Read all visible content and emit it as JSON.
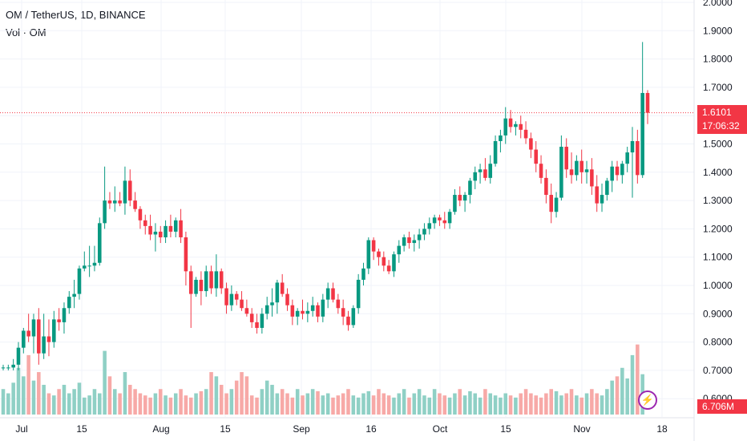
{
  "header": {
    "title": "OM / TetherUS, 1D, BINANCE",
    "volume_label": "Vol · OM"
  },
  "price_tag": {
    "price": "1.6101",
    "countdown": "17:06:32",
    "color": "#f23645"
  },
  "volume_tag": {
    "value": "6.706M",
    "color": "#f23645"
  },
  "colors": {
    "up": "#089981",
    "down": "#f23645",
    "up_volume": "#8fd0c5",
    "down_volume": "#f7a9a7",
    "grid": "#f0f3fa"
  },
  "icons": {
    "flash": "lightning-icon"
  },
  "chart_data": {
    "type": "candlestick",
    "y_axis": {
      "labels": [
        "2.0000",
        "1.9000",
        "1.8000",
        "1.7000",
        "1.6000",
        "1.5000",
        "1.4000",
        "1.3000",
        "1.2000",
        "1.1000",
        "1.0000",
        "0.9000",
        "0.8000",
        "0.7000",
        "0.6000"
      ],
      "range": [
        0.6,
        2.0
      ]
    },
    "x_axis": {
      "labels": [
        "Jul",
        "15",
        "Aug",
        "15",
        "Sep",
        "16",
        "Oct",
        "15",
        "Nov",
        "18"
      ]
    },
    "ohlc": [
      [
        0.71,
        0.72,
        0.7,
        0.71
      ],
      [
        0.71,
        0.72,
        0.7,
        0.71
      ],
      [
        0.71,
        0.74,
        0.7,
        0.72
      ],
      [
        0.72,
        0.8,
        0.7,
        0.78
      ],
      [
        0.78,
        0.85,
        0.76,
        0.84
      ],
      [
        0.84,
        0.9,
        0.8,
        0.82
      ],
      [
        0.82,
        0.9,
        0.76,
        0.88
      ],
      [
        0.88,
        0.92,
        0.72,
        0.76
      ],
      [
        0.76,
        0.9,
        0.74,
        0.82
      ],
      [
        0.82,
        0.88,
        0.75,
        0.8
      ],
      [
        0.8,
        0.91,
        0.78,
        0.88
      ],
      [
        0.88,
        0.92,
        0.84,
        0.87
      ],
      [
        0.87,
        0.94,
        0.83,
        0.92
      ],
      [
        0.92,
        0.98,
        0.9,
        0.96
      ],
      [
        0.96,
        1.02,
        0.92,
        0.97
      ],
      [
        0.97,
        1.07,
        0.95,
        1.06
      ],
      [
        1.06,
        1.12,
        1.05,
        1.07
      ],
      [
        1.07,
        1.14,
        1.03,
        1.07
      ],
      [
        1.07,
        1.14,
        1.05,
        1.08
      ],
      [
        1.08,
        1.24,
        1.07,
        1.22
      ],
      [
        1.22,
        1.42,
        1.2,
        1.3
      ],
      [
        1.3,
        1.33,
        1.27,
        1.29
      ],
      [
        1.29,
        1.35,
        1.26,
        1.3
      ],
      [
        1.3,
        1.33,
        1.28,
        1.29
      ],
      [
        1.29,
        1.42,
        1.25,
        1.37
      ],
      [
        1.37,
        1.41,
        1.28,
        1.3
      ],
      [
        1.3,
        1.33,
        1.26,
        1.27
      ],
      [
        1.27,
        1.28,
        1.2,
        1.23
      ],
      [
        1.23,
        1.25,
        1.18,
        1.21
      ],
      [
        1.21,
        1.25,
        1.16,
        1.18
      ],
      [
        1.18,
        1.22,
        1.12,
        1.19
      ],
      [
        1.19,
        1.21,
        1.15,
        1.17
      ],
      [
        1.17,
        1.23,
        1.15,
        1.21
      ],
      [
        1.21,
        1.25,
        1.17,
        1.19
      ],
      [
        1.19,
        1.24,
        1.17,
        1.23
      ],
      [
        1.23,
        1.27,
        1.15,
        1.17
      ],
      [
        1.17,
        1.19,
        1.0,
        1.05
      ],
      [
        1.05,
        1.07,
        0.85,
        0.97
      ],
      [
        0.97,
        1.03,
        0.96,
        1.02
      ],
      [
        1.02,
        1.05,
        0.93,
        0.98
      ],
      [
        0.98,
        1.07,
        0.96,
        1.05
      ],
      [
        1.05,
        1.07,
        0.97,
        0.99
      ],
      [
        0.99,
        1.11,
        0.96,
        1.05
      ],
      [
        1.05,
        1.06,
        0.97,
        0.99
      ],
      [
        0.99,
        1.01,
        0.9,
        0.93
      ],
      [
        0.93,
        1.0,
        0.91,
        0.97
      ],
      [
        0.97,
        0.98,
        0.93,
        0.95
      ],
      [
        0.95,
        0.98,
        0.91,
        0.92
      ],
      [
        0.92,
        0.95,
        0.89,
        0.9
      ],
      [
        0.9,
        0.92,
        0.85,
        0.87
      ],
      [
        0.87,
        0.9,
        0.83,
        0.85
      ],
      [
        0.85,
        0.92,
        0.83,
        0.9
      ],
      [
        0.9,
        0.96,
        0.88,
        0.93
      ],
      [
        0.93,
        0.99,
        0.89,
        0.94
      ],
      [
        0.94,
        1.02,
        0.9,
        1.01
      ],
      [
        1.01,
        1.04,
        0.96,
        0.97
      ],
      [
        0.97,
        0.99,
        0.91,
        0.93
      ],
      [
        0.93,
        0.95,
        0.86,
        0.89
      ],
      [
        0.89,
        0.92,
        0.86,
        0.91
      ],
      [
        0.91,
        0.95,
        0.88,
        0.9
      ],
      [
        0.9,
        0.94,
        0.87,
        0.91
      ],
      [
        0.91,
        0.96,
        0.89,
        0.93
      ],
      [
        0.93,
        0.94,
        0.87,
        0.89
      ],
      [
        0.89,
        0.97,
        0.87,
        0.95
      ],
      [
        0.95,
        1.01,
        0.92,
        0.99
      ],
      [
        0.99,
        1.01,
        0.94,
        0.95
      ],
      [
        0.95,
        0.97,
        0.9,
        0.92
      ],
      [
        0.92,
        0.95,
        0.86,
        0.89
      ],
      [
        0.89,
        0.91,
        0.84,
        0.86
      ],
      [
        0.86,
        0.93,
        0.85,
        0.92
      ],
      [
        0.92,
        1.04,
        0.9,
        1.02
      ],
      [
        1.02,
        1.08,
        1.0,
        1.06
      ],
      [
        1.06,
        1.17,
        1.04,
        1.16
      ],
      [
        1.16,
        1.17,
        1.09,
        1.12
      ],
      [
        1.12,
        1.13,
        1.07,
        1.1
      ],
      [
        1.1,
        1.12,
        1.05,
        1.07
      ],
      [
        1.07,
        1.09,
        1.04,
        1.05
      ],
      [
        1.05,
        1.12,
        1.03,
        1.11
      ],
      [
        1.11,
        1.16,
        1.08,
        1.14
      ],
      [
        1.14,
        1.18,
        1.12,
        1.17
      ],
      [
        1.17,
        1.19,
        1.13,
        1.15
      ],
      [
        1.15,
        1.18,
        1.12,
        1.16
      ],
      [
        1.16,
        1.2,
        1.13,
        1.18
      ],
      [
        1.18,
        1.22,
        1.16,
        1.2
      ],
      [
        1.2,
        1.24,
        1.18,
        1.22
      ],
      [
        1.22,
        1.25,
        1.2,
        1.24
      ],
      [
        1.24,
        1.25,
        1.21,
        1.23
      ],
      [
        1.23,
        1.26,
        1.2,
        1.22
      ],
      [
        1.22,
        1.27,
        1.2,
        1.26
      ],
      [
        1.26,
        1.34,
        1.25,
        1.32
      ],
      [
        1.32,
        1.35,
        1.28,
        1.3
      ],
      [
        1.3,
        1.33,
        1.26,
        1.32
      ],
      [
        1.32,
        1.38,
        1.29,
        1.37
      ],
      [
        1.37,
        1.42,
        1.34,
        1.4
      ],
      [
        1.4,
        1.43,
        1.36,
        1.41
      ],
      [
        1.41,
        1.45,
        1.37,
        1.38
      ],
      [
        1.38,
        1.46,
        1.36,
        1.43
      ],
      [
        1.43,
        1.53,
        1.42,
        1.51
      ],
      [
        1.51,
        1.55,
        1.47,
        1.53
      ],
      [
        1.53,
        1.63,
        1.5,
        1.59
      ],
      [
        1.59,
        1.62,
        1.54,
        1.56
      ],
      [
        1.56,
        1.58,
        1.53,
        1.57
      ],
      [
        1.57,
        1.6,
        1.52,
        1.55
      ],
      [
        1.55,
        1.58,
        1.5,
        1.52
      ],
      [
        1.52,
        1.54,
        1.45,
        1.48
      ],
      [
        1.48,
        1.51,
        1.4,
        1.43
      ],
      [
        1.43,
        1.46,
        1.36,
        1.38
      ],
      [
        1.38,
        1.41,
        1.29,
        1.32
      ],
      [
        1.32,
        1.36,
        1.22,
        1.26
      ],
      [
        1.26,
        1.33,
        1.24,
        1.31
      ],
      [
        1.31,
        1.53,
        1.3,
        1.49
      ],
      [
        1.49,
        1.52,
        1.38,
        1.41
      ],
      [
        1.41,
        1.47,
        1.36,
        1.39
      ],
      [
        1.39,
        1.46,
        1.37,
        1.44
      ],
      [
        1.44,
        1.48,
        1.36,
        1.4
      ],
      [
        1.4,
        1.44,
        1.36,
        1.41
      ],
      [
        1.41,
        1.45,
        1.32,
        1.35
      ],
      [
        1.35,
        1.39,
        1.26,
        1.29
      ],
      [
        1.29,
        1.36,
        1.26,
        1.32
      ],
      [
        1.32,
        1.38,
        1.3,
        1.37
      ],
      [
        1.37,
        1.44,
        1.33,
        1.42
      ],
      [
        1.42,
        1.44,
        1.37,
        1.39
      ],
      [
        1.39,
        1.44,
        1.36,
        1.43
      ],
      [
        1.43,
        1.49,
        1.4,
        1.47
      ],
      [
        1.47,
        1.56,
        1.31,
        1.51
      ],
      [
        1.51,
        1.55,
        1.36,
        1.39
      ],
      [
        1.39,
        1.86,
        1.38,
        1.68
      ],
      [
        1.68,
        1.69,
        1.57,
        1.61
      ]
    ],
    "volume": [
      12,
      10,
      15,
      22,
      18,
      28,
      16,
      20,
      14,
      10,
      9,
      12,
      14,
      10,
      12,
      15,
      8,
      9,
      12,
      10,
      30,
      18,
      12,
      10,
      20,
      14,
      12,
      10,
      9,
      8,
      10,
      12,
      9,
      8,
      10,
      12,
      9,
      8,
      10,
      11,
      12,
      20,
      18,
      14,
      10,
      12,
      16,
      20,
      18,
      9,
      8,
      12,
      16,
      14,
      10,
      12,
      10,
      8,
      12,
      9,
      10,
      12,
      11,
      9,
      10,
      8,
      9,
      10,
      12,
      9,
      8,
      10,
      11,
      9,
      12,
      10,
      9,
      8,
      10,
      12,
      8,
      10,
      12,
      9,
      8,
      12,
      10,
      9,
      8,
      10,
      12,
      9,
      11,
      10,
      8,
      12,
      10,
      9,
      8,
      10,
      9,
      8,
      10,
      12,
      10,
      9,
      8,
      10,
      12,
      11,
      9,
      10,
      12,
      9,
      8,
      10,
      12,
      10,
      9,
      12,
      16,
      18,
      22,
      17,
      28,
      33,
      19
    ]
  }
}
